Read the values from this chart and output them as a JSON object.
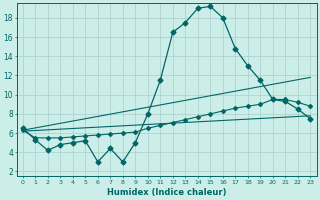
{
  "xlabel": "Humidex (Indice chaleur)",
  "bg_color": "#cceee8",
  "grid_color": "#aacccc",
  "line_color": "#006666",
  "xlim": [
    -0.5,
    23.5
  ],
  "ylim": [
    1.5,
    19.5
  ],
  "yticks": [
    2,
    4,
    6,
    8,
    10,
    12,
    14,
    16,
    18
  ],
  "xticks": [
    0,
    1,
    2,
    3,
    4,
    5,
    6,
    7,
    8,
    9,
    10,
    11,
    12,
    13,
    14,
    15,
    16,
    17,
    18,
    19,
    20,
    21,
    22,
    23
  ],
  "series1_x": [
    0,
    1,
    2,
    3,
    4,
    5,
    6,
    7,
    8,
    9,
    10,
    11,
    12,
    13,
    14,
    15,
    16,
    17,
    18,
    19,
    20,
    21,
    22,
    23
  ],
  "series1_y": [
    6.5,
    5.3,
    4.2,
    4.8,
    5.0,
    5.2,
    3.0,
    4.4,
    3.0,
    5.0,
    8.0,
    11.5,
    16.5,
    17.5,
    19.0,
    19.2,
    18.0,
    14.8,
    13.0,
    11.5,
    9.5,
    9.3,
    8.5,
    7.5
  ],
  "series2_x": [
    0,
    1,
    2,
    3,
    4,
    5,
    6,
    7,
    8,
    9,
    10,
    11,
    12,
    13,
    14,
    15,
    16,
    17,
    18,
    19,
    20,
    21,
    22,
    23
  ],
  "series2_y": [
    6.3,
    5.5,
    5.5,
    5.5,
    5.6,
    5.7,
    5.8,
    5.9,
    6.0,
    6.1,
    6.5,
    6.8,
    7.1,
    7.4,
    7.7,
    8.0,
    8.3,
    8.6,
    8.8,
    9.0,
    9.5,
    9.5,
    9.2,
    8.8
  ],
  "series3_x": [
    0,
    23
  ],
  "series3_y": [
    6.3,
    11.8
  ],
  "series4_x": [
    0,
    23
  ],
  "series4_y": [
    6.2,
    7.8
  ]
}
